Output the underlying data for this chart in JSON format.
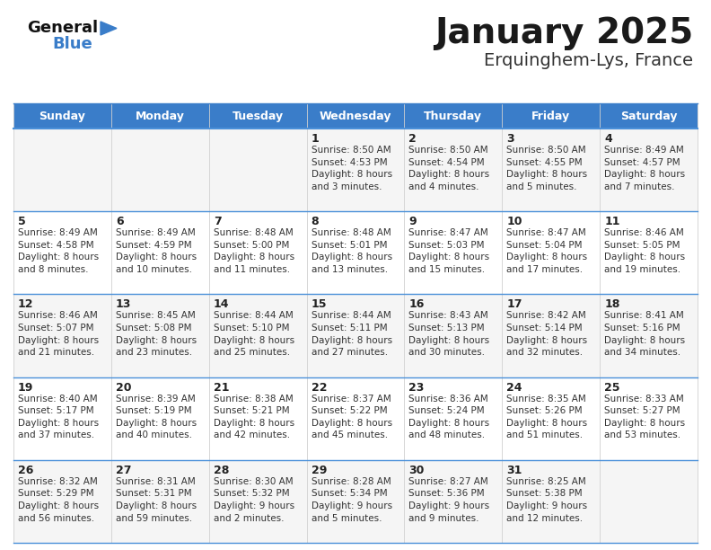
{
  "title": "January 2025",
  "subtitle": "Erquinghem-Lys, France",
  "header_bg": "#3a7dc9",
  "header_text_color": "#ffffff",
  "bg_color": "#ffffff",
  "row_bg_odd": "#f5f5f5",
  "row_bg_even": "#ffffff",
  "row_sep_color": "#4a90d9",
  "cell_border_color": "#d0d0d0",
  "text_color": "#222222",
  "days_of_week": [
    "Sunday",
    "Monday",
    "Tuesday",
    "Wednesday",
    "Thursday",
    "Friday",
    "Saturday"
  ],
  "cell_data": [
    [
      "",
      "",
      "",
      "1\nSunrise: 8:50 AM\nSunset: 4:53 PM\nDaylight: 8 hours\nand 3 minutes.",
      "2\nSunrise: 8:50 AM\nSunset: 4:54 PM\nDaylight: 8 hours\nand 4 minutes.",
      "3\nSunrise: 8:50 AM\nSunset: 4:55 PM\nDaylight: 8 hours\nand 5 minutes.",
      "4\nSunrise: 8:49 AM\nSunset: 4:57 PM\nDaylight: 8 hours\nand 7 minutes."
    ],
    [
      "5\nSunrise: 8:49 AM\nSunset: 4:58 PM\nDaylight: 8 hours\nand 8 minutes.",
      "6\nSunrise: 8:49 AM\nSunset: 4:59 PM\nDaylight: 8 hours\nand 10 minutes.",
      "7\nSunrise: 8:48 AM\nSunset: 5:00 PM\nDaylight: 8 hours\nand 11 minutes.",
      "8\nSunrise: 8:48 AM\nSunset: 5:01 PM\nDaylight: 8 hours\nand 13 minutes.",
      "9\nSunrise: 8:47 AM\nSunset: 5:03 PM\nDaylight: 8 hours\nand 15 minutes.",
      "10\nSunrise: 8:47 AM\nSunset: 5:04 PM\nDaylight: 8 hours\nand 17 minutes.",
      "11\nSunrise: 8:46 AM\nSunset: 5:05 PM\nDaylight: 8 hours\nand 19 minutes."
    ],
    [
      "12\nSunrise: 8:46 AM\nSunset: 5:07 PM\nDaylight: 8 hours\nand 21 minutes.",
      "13\nSunrise: 8:45 AM\nSunset: 5:08 PM\nDaylight: 8 hours\nand 23 minutes.",
      "14\nSunrise: 8:44 AM\nSunset: 5:10 PM\nDaylight: 8 hours\nand 25 minutes.",
      "15\nSunrise: 8:44 AM\nSunset: 5:11 PM\nDaylight: 8 hours\nand 27 minutes.",
      "16\nSunrise: 8:43 AM\nSunset: 5:13 PM\nDaylight: 8 hours\nand 30 minutes.",
      "17\nSunrise: 8:42 AM\nSunset: 5:14 PM\nDaylight: 8 hours\nand 32 minutes.",
      "18\nSunrise: 8:41 AM\nSunset: 5:16 PM\nDaylight: 8 hours\nand 34 minutes."
    ],
    [
      "19\nSunrise: 8:40 AM\nSunset: 5:17 PM\nDaylight: 8 hours\nand 37 minutes.",
      "20\nSunrise: 8:39 AM\nSunset: 5:19 PM\nDaylight: 8 hours\nand 40 minutes.",
      "21\nSunrise: 8:38 AM\nSunset: 5:21 PM\nDaylight: 8 hours\nand 42 minutes.",
      "22\nSunrise: 8:37 AM\nSunset: 5:22 PM\nDaylight: 8 hours\nand 45 minutes.",
      "23\nSunrise: 8:36 AM\nSunset: 5:24 PM\nDaylight: 8 hours\nand 48 minutes.",
      "24\nSunrise: 8:35 AM\nSunset: 5:26 PM\nDaylight: 8 hours\nand 51 minutes.",
      "25\nSunrise: 8:33 AM\nSunset: 5:27 PM\nDaylight: 8 hours\nand 53 minutes."
    ],
    [
      "26\nSunrise: 8:32 AM\nSunset: 5:29 PM\nDaylight: 8 hours\nand 56 minutes.",
      "27\nSunrise: 8:31 AM\nSunset: 5:31 PM\nDaylight: 8 hours\nand 59 minutes.",
      "28\nSunrise: 8:30 AM\nSunset: 5:32 PM\nDaylight: 9 hours\nand 2 minutes.",
      "29\nSunrise: 8:28 AM\nSunset: 5:34 PM\nDaylight: 9 hours\nand 5 minutes.",
      "30\nSunrise: 8:27 AM\nSunset: 5:36 PM\nDaylight: 9 hours\nand 9 minutes.",
      "31\nSunrise: 8:25 AM\nSunset: 5:38 PM\nDaylight: 9 hours\nand 12 minutes.",
      ""
    ]
  ],
  "title_fontsize": 28,
  "subtitle_fontsize": 14,
  "header_fontsize": 9,
  "day_num_fontsize": 9,
  "cell_text_fontsize": 7.5,
  "logo_general_color": "#111111",
  "logo_blue_color": "#3a7dc9",
  "logo_triangle_color": "#3a7dc9"
}
